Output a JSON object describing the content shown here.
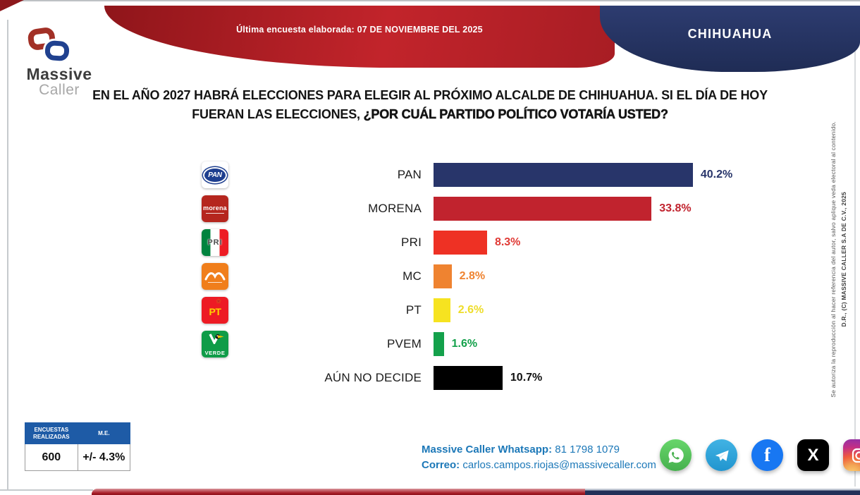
{
  "brand": {
    "name_line1": "Massive",
    "name_line2": "Caller"
  },
  "header": {
    "survey_date_banner": "Última encuesta elaborada: 07 DE NOVIEMBRE DEL 2025",
    "region": "CHIHUAHUA"
  },
  "question": {
    "line1": "EN EL AÑO 2027 HABRÁ ELECCIONES PARA ELEGIR AL PRÓXIMO ALCALDE DE CHIHUAHUA. SI EL DÍA DE HOY",
    "line2_prefix": "FUERAN LAS ELECCIONES, ",
    "line2_emphasis": "¿POR CUÁL PARTIDO POLÍTICO VOTARÍA USTED?"
  },
  "chart_data": {
    "type": "bar",
    "orientation": "horizontal",
    "value_unit": "%",
    "xlim": [
      0,
      44
    ],
    "grid": false,
    "legend": false,
    "categories": [
      "PAN",
      "MORENA",
      "PRI",
      "MC",
      "PT",
      "PVEM",
      "AÚN NO DECIDE"
    ],
    "values": [
      40.2,
      33.8,
      8.3,
      2.8,
      2.6,
      1.6,
      10.7
    ],
    "series": [
      {
        "category": "PAN",
        "value": 40.2,
        "value_label": "40.2%",
        "bar_color": "#28356a",
        "value_color": "#28356a",
        "logo": "pan",
        "logo_text": "PAN"
      },
      {
        "category": "MORENA",
        "value": 33.8,
        "value_label": "33.8%",
        "bar_color": "#c1232e",
        "value_color": "#c1232e",
        "logo": "morena",
        "logo_text": "morena"
      },
      {
        "category": "PRI",
        "value": 8.3,
        "value_label": "8.3%",
        "bar_color": "#ee3124",
        "value_color": "#e03a35",
        "logo": "pri",
        "logo_text": "PRI"
      },
      {
        "category": "MC",
        "value": 2.8,
        "value_label": "2.8%",
        "bar_color": "#ef8330",
        "value_color": "#ef8330",
        "logo": "mc",
        "logo_text": ""
      },
      {
        "category": "PT",
        "value": 2.6,
        "value_label": "2.6%",
        "bar_color": "#f6e320",
        "value_color": "#eedd2a",
        "logo": "pt",
        "logo_text": "PT"
      },
      {
        "category": "PVEM",
        "value": 1.6,
        "value_label": "1.6%",
        "bar_color": "#14a14b",
        "value_color": "#14a14b",
        "logo": "pvem",
        "logo_text": "VERDE"
      },
      {
        "category": "AÚN NO DECIDE",
        "value": 10.7,
        "value_label": "10.7%",
        "bar_color": "#000000",
        "value_color": "#111111",
        "logo": null,
        "logo_text": ""
      }
    ]
  },
  "stats_table": {
    "headers": [
      "ENCUESTAS REALIZADAS",
      "M.E."
    ],
    "values": [
      "600",
      "+/- 4.3%"
    ]
  },
  "contact": {
    "whatsapp_label": "Massive Caller Whatsapp:",
    "whatsapp_value": "81 1798 1079",
    "email_label": "Correo:",
    "email_value": "carlos.campos.riojas@massivecaller.com"
  },
  "social_icons": [
    {
      "name": "whatsapp-icon"
    },
    {
      "name": "telegram-icon"
    },
    {
      "name": "facebook-icon",
      "glyph": "f"
    },
    {
      "name": "x-icon",
      "glyph": "X"
    },
    {
      "name": "instagram-icon"
    }
  ],
  "legal": {
    "rights_line": "D.R., (C) MASSIVE CALLER S.A DE C.V., 2025",
    "authorization_line": "Se autoriza la reproducción al hacer referencia del autor, salvo aplique veda electoral al contenido."
  }
}
